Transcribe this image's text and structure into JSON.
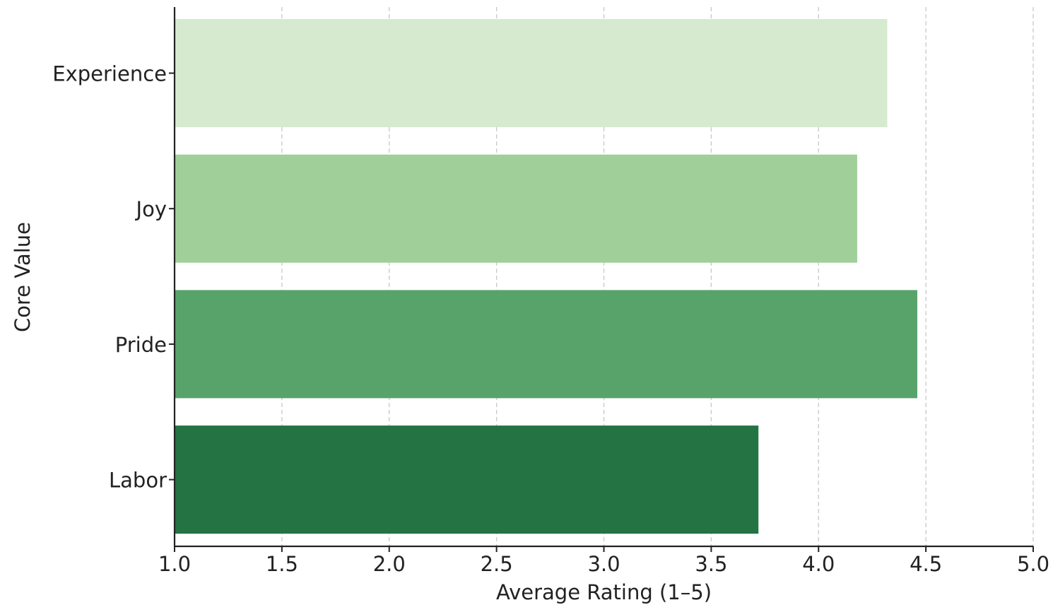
{
  "chart_data": {
    "type": "bar",
    "orientation": "horizontal",
    "title": "",
    "xlabel": "Average Rating (1–5)",
    "ylabel": "Core Value",
    "categories": [
      "Experience",
      "Joy",
      "Pride",
      "Labor"
    ],
    "values": [
      4.32,
      4.18,
      4.46,
      3.72
    ],
    "colors": [
      "#d5eacf",
      "#a0cf99",
      "#58a36a",
      "#237442"
    ],
    "xlim": [
      1.0,
      5.0
    ],
    "xticks": [
      "1.0",
      "1.5",
      "2.0",
      "2.5",
      "3.0",
      "3.5",
      "4.0",
      "4.5",
      "5.0"
    ],
    "grid": "vertical dashed",
    "legend": "none"
  }
}
